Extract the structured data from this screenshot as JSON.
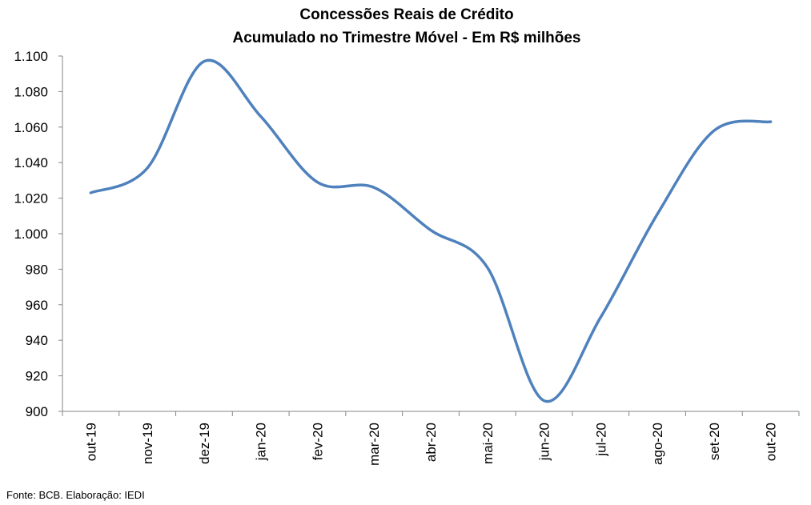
{
  "chart_data": {
    "type": "line",
    "title": "Concessões Reais de Crédito",
    "subtitle": "Acumulado no Trimestre Móvel - Em R$ milhões",
    "xlabel": "",
    "ylabel": "",
    "categories": [
      "out-19",
      "nov-19",
      "dez-19",
      "jan-20",
      "fev-20",
      "mar-20",
      "abr-20",
      "mai-20",
      "jun-20",
      "jul-20",
      "ago-20",
      "set-20",
      "out-20"
    ],
    "series": [
      {
        "values": [
          1023,
          1037,
          1097,
          1066,
          1029,
          1026,
          1002,
          981,
          906,
          953,
          1011,
          1058,
          1063
        ]
      }
    ],
    "ylim": [
      900,
      1100
    ],
    "yticks": [
      900,
      920,
      940,
      960,
      980,
      1000,
      1020,
      1040,
      1060,
      1080,
      1100
    ],
    "ytick_labels": [
      "900",
      "920",
      "940",
      "960",
      "980",
      "1.000",
      "1.020",
      "1.040",
      "1.060",
      "1.080",
      "1.100"
    ],
    "grid": false,
    "legend": "none",
    "line_color": "#4f81bd"
  },
  "source": "Fonte:  BCB. Elaboração: IEDI"
}
